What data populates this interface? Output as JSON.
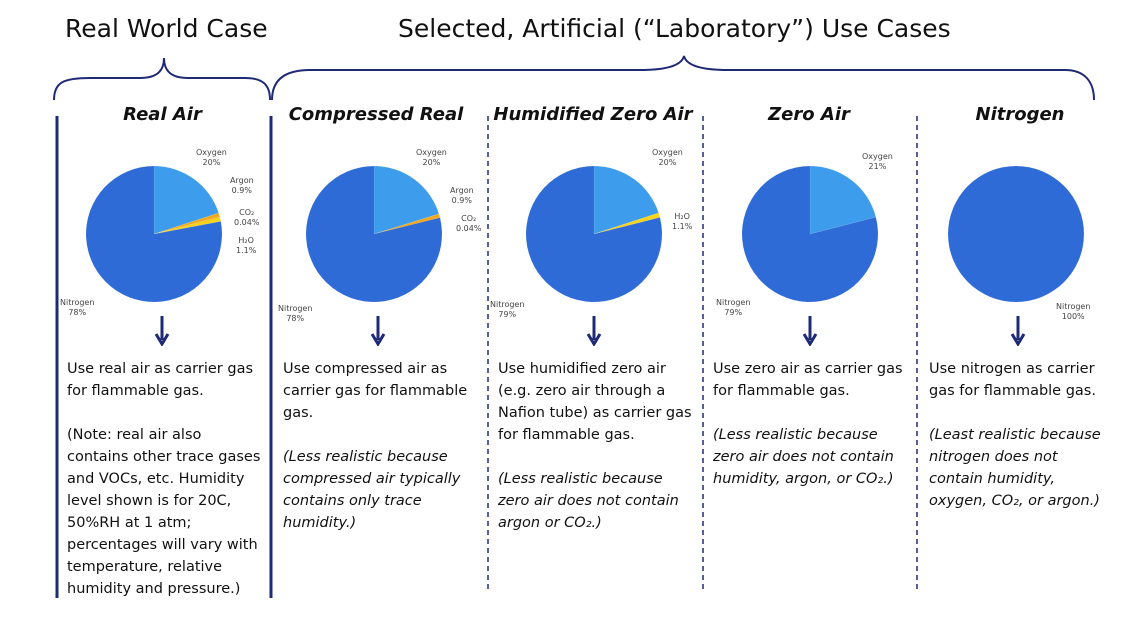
{
  "headers": {
    "real_world": "Real World Case",
    "selected": "Selected, Artificial (“Laboratory”) Use Cases"
  },
  "colors": {
    "nitrogen": "#2e6bd6",
    "oxygen": "#3d9cec",
    "argon": "#f0a91e",
    "co2": "#e0502a",
    "h2o": "#f7d31c",
    "divider": "#1f2a77"
  },
  "chart_data": [
    {
      "type": "pie",
      "title": "Real Air",
      "slices": [
        {
          "name": "Nitrogen",
          "label": "Nitrogen",
          "pct_text": "78%",
          "value": 78
        },
        {
          "name": "Oxygen",
          "label": "Oxygen",
          "pct_text": "20%",
          "value": 20
        },
        {
          "name": "Argon",
          "label": "Argon",
          "pct_text": "0.9%",
          "value": 0.9
        },
        {
          "name": "CO2",
          "label": "CO₂",
          "pct_text": "0.04%",
          "value": 0.04
        },
        {
          "name": "H2O",
          "label": "H₂O",
          "pct_text": "1.1%",
          "value": 1.1
        }
      ]
    },
    {
      "type": "pie",
      "title": "Compressed Real",
      "slices": [
        {
          "name": "Nitrogen",
          "label": "Nitrogen",
          "pct_text": "78%",
          "value": 78
        },
        {
          "name": "Oxygen",
          "label": "Oxygen",
          "pct_text": "20%",
          "value": 20
        },
        {
          "name": "Argon",
          "label": "Argon",
          "pct_text": "0.9%",
          "value": 0.9
        },
        {
          "name": "CO2",
          "label": "CO₂",
          "pct_text": "0.04%",
          "value": 0.04
        }
      ]
    },
    {
      "type": "pie",
      "title": "Humidified Zero Air",
      "slices": [
        {
          "name": "Nitrogen",
          "label": "Nitrogen",
          "pct_text": "79%",
          "value": 79
        },
        {
          "name": "Oxygen",
          "label": "Oxygen",
          "pct_text": "20%",
          "value": 20
        },
        {
          "name": "H2O",
          "label": "H₂O",
          "pct_text": "1.1%",
          "value": 1.1
        }
      ]
    },
    {
      "type": "pie",
      "title": "Zero Air",
      "slices": [
        {
          "name": "Nitrogen",
          "label": "Nitrogen",
          "pct_text": "79%",
          "value": 79
        },
        {
          "name": "Oxygen",
          "label": "Oxygen",
          "pct_text": "21%",
          "value": 21
        }
      ]
    },
    {
      "type": "pie",
      "title": "Nitrogen",
      "slices": [
        {
          "name": "Nitrogen",
          "label": "Nitrogen",
          "pct_text": "100%",
          "value": 100
        }
      ]
    }
  ],
  "columns": [
    {
      "desc": "Use real air as carrier gas for flammable gas.",
      "note": "(Note: real air also contains other trace gases and VOCs, etc.  Humidity level shown is for 20C, 50%RH at 1 atm; percentages will vary with temperature, relative humidity and pressure.)"
    },
    {
      "desc": "Use compressed air as carrier gas for flammable gas.",
      "note": "(Less realistic because compressed air typically contains only trace humidity.)"
    },
    {
      "desc": "Use humidified zero air (e.g. zero air through a Nafion tube) as carrier gas for flammable gas.",
      "note": "(Less realistic because zero air does not contain argon or CO₂.)"
    },
    {
      "desc": "Use zero air as carrier gas for flammable gas.",
      "note": "(Less realistic because zero air does not contain humidity, argon, or CO₂.)"
    },
    {
      "desc": "Use nitrogen as carrier gas for flammable gas.",
      "note": "(Least realistic because nitrogen does not contain humidity, oxygen, CO₂, or argon.)"
    }
  ]
}
